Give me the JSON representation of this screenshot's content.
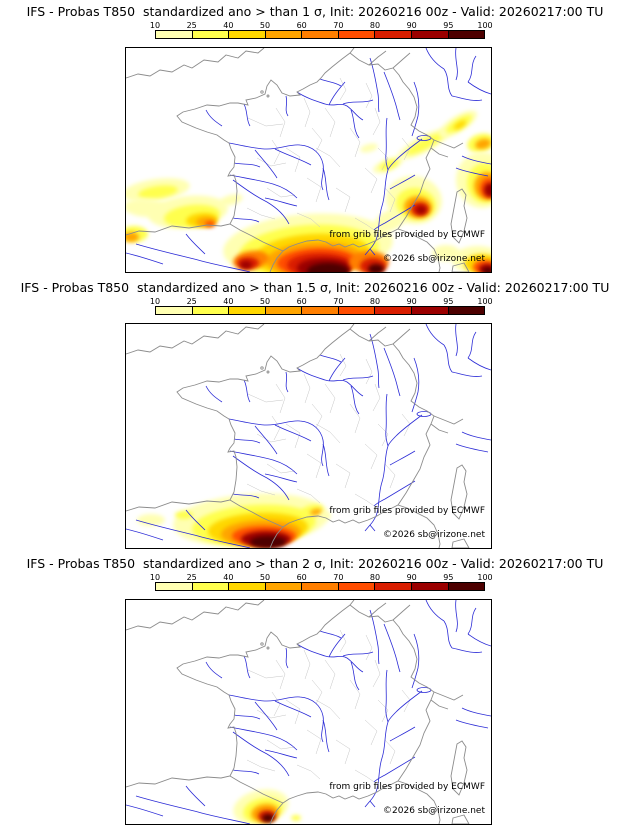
{
  "colorbar": {
    "labels": [
      "10",
      "25",
      "40",
      "50",
      "60",
      "70",
      "80",
      "90",
      "95",
      "100"
    ],
    "colors": [
      "#ffffb2",
      "#ffff4d",
      "#ffd700",
      "#ffa500",
      "#ff7f00",
      "#ff4d00",
      "#d91e00",
      "#9b0000",
      "#4d0000"
    ]
  },
  "attribution": {
    "source": "from grib files provided by ECMWF",
    "copyright": "©2026 sb@irizone.net"
  },
  "map_colors": {
    "coast": "#8c8c8c",
    "departments": "#c6c6c6",
    "rivers": "#2b2bd6",
    "frame": "#000000"
  },
  "panels": [
    {
      "title": "IFS - Probas T850  standardized ano > than 1 σ, Init: 20260216 00z - Valid: 20260217:00 TU",
      "threshold_sigma": "1",
      "blobs": [
        [
          30,
          142,
          34,
          11,
          -8,
          "#ffffb2"
        ],
        [
          32,
          144,
          20,
          6,
          -8,
          "#ffff4d"
        ],
        [
          20,
          160,
          22,
          9,
          4,
          "#ffffb2"
        ],
        [
          105,
          152,
          12,
          5,
          -15,
          "#ffffb2"
        ],
        [
          62,
          164,
          40,
          16,
          -6,
          "#ffffb2"
        ],
        [
          66,
          168,
          28,
          11,
          -6,
          "#ffff4d"
        ],
        [
          76,
          172,
          16,
          7,
          -4,
          "#ffd700"
        ],
        [
          80,
          174,
          10,
          5,
          0,
          "#ffa500"
        ],
        [
          84,
          176,
          5,
          3,
          0,
          "#ff4d00"
        ],
        [
          8,
          186,
          14,
          8,
          0,
          "#ffff4d"
        ],
        [
          5,
          189,
          8,
          5,
          0,
          "#ffa500"
        ],
        [
          298,
          96,
          30,
          8,
          -28,
          "#ffffb2"
        ],
        [
          299,
          96,
          21,
          5,
          -28,
          "#ffff4d"
        ],
        [
          332,
          76,
          22,
          8,
          -32,
          "#ffffb2"
        ],
        [
          333,
          76,
          15,
          5,
          -32,
          "#ffff4d"
        ],
        [
          334,
          77,
          7,
          3,
          -32,
          "#ffd700"
        ],
        [
          355,
          95,
          14,
          9,
          -15,
          "#ffff4d"
        ],
        [
          357,
          96,
          8,
          5,
          -15,
          "#ffa500"
        ],
        [
          262,
          117,
          16,
          6,
          -22,
          "#ffffb2"
        ],
        [
          263,
          117,
          10,
          4,
          -22,
          "#ffff4d"
        ],
        [
          243,
          100,
          9,
          4,
          -15,
          "#ffffb2"
        ],
        [
          265,
          172,
          18,
          10,
          -25,
          "#ffffb2"
        ],
        [
          320,
          205,
          14,
          8,
          0,
          "#ffffb2"
        ],
        [
          356,
          132,
          26,
          28,
          0,
          "#ffffb2"
        ],
        [
          359,
          135,
          18,
          20,
          0,
          "#ffff4d"
        ],
        [
          361,
          138,
          13,
          14,
          0,
          "#ffa500"
        ],
        [
          363,
          140,
          9,
          10,
          0,
          "#ff4d00"
        ],
        [
          364,
          142,
          6,
          7,
          0,
          "#9b0000"
        ],
        [
          288,
          152,
          28,
          24,
          10,
          "#ffffb2"
        ],
        [
          290,
          156,
          20,
          16,
          10,
          "#ffff4d"
        ],
        [
          292,
          159,
          14,
          11,
          5,
          "#ffa500"
        ],
        [
          294,
          161,
          9,
          7,
          0,
          "#d91e00"
        ],
        [
          295,
          162,
          5,
          4,
          0,
          "#9b0000"
        ],
        [
          182,
          198,
          85,
          32,
          -4,
          "#ffffb2"
        ],
        [
          183,
          203,
          70,
          26,
          -4,
          "#ffff4d"
        ],
        [
          186,
          207,
          58,
          21,
          -4,
          "#ffd700"
        ],
        [
          188,
          211,
          48,
          17,
          -3,
          "#ffa500"
        ],
        [
          191,
          214,
          40,
          14,
          -2,
          "#ff4d00"
        ],
        [
          194,
          217,
          33,
          12,
          0,
          "#d91e00"
        ],
        [
          198,
          220,
          27,
          10,
          0,
          "#9b0000"
        ],
        [
          202,
          223,
          21,
          8,
          0,
          "#4d0000"
        ],
        [
          125,
          212,
          18,
          9,
          -8,
          "#ff7f00"
        ],
        [
          122,
          215,
          11,
          6,
          0,
          "#d91e00"
        ],
        [
          120,
          217,
          6,
          4,
          0,
          "#9b0000"
        ],
        [
          243,
          214,
          20,
          11,
          0,
          "#ff7f00"
        ],
        [
          247,
          218,
          13,
          8,
          0,
          "#d91e00"
        ],
        [
          250,
          221,
          8,
          5,
          0,
          "#4d0000"
        ],
        [
          352,
          212,
          26,
          14,
          0,
          "#ffffb2"
        ],
        [
          356,
          216,
          18,
          10,
          0,
          "#ffd700"
        ],
        [
          359,
          219,
          12,
          7,
          0,
          "#ff4d00"
        ],
        [
          361,
          221,
          8,
          5,
          0,
          "#9b0000"
        ],
        [
          362,
          223,
          5,
          3,
          0,
          "#4d0000"
        ]
      ]
    },
    {
      "title": "IFS - Probas T850  standardized ano > than 1.5 σ, Init: 20260216 00z - Valid: 20260217:00 TU",
      "threshold_sigma": "1.5",
      "blobs": [
        [
          25,
          196,
          14,
          6,
          0,
          "#ffffb2"
        ],
        [
          125,
          196,
          78,
          26,
          -4,
          "#ffffb2"
        ],
        [
          128,
          201,
          62,
          20,
          -4,
          "#ffff4d"
        ],
        [
          132,
          205,
          50,
          16,
          -3,
          "#ffd700"
        ],
        [
          135,
          209,
          40,
          13,
          -2,
          "#ffa500"
        ],
        [
          138,
          212,
          32,
          10,
          0,
          "#ff4d00"
        ],
        [
          140,
          215,
          25,
          8,
          0,
          "#9b0000"
        ],
        [
          142,
          218,
          18,
          6,
          0,
          "#4d0000"
        ],
        [
          58,
          191,
          9,
          4,
          0,
          "#ffff4d"
        ],
        [
          186,
          186,
          11,
          5,
          -12,
          "#ffff4d"
        ],
        [
          190,
          188,
          6,
          3,
          -12,
          "#ffa500"
        ],
        [
          200,
          192,
          5,
          3,
          0,
          "#ffffb2"
        ]
      ]
    },
    {
      "title": "IFS - Probas T850  standardized ano > than 2 σ, Init: 20260216 00z - Valid: 20260217:00 TU",
      "threshold_sigma": "2",
      "blobs": [
        [
          135,
          207,
          28,
          17,
          -12,
          "#ffffb2"
        ],
        [
          137,
          210,
          20,
          12,
          -12,
          "#ffff4d"
        ],
        [
          139,
          213,
          14,
          9,
          -8,
          "#ffa500"
        ],
        [
          141,
          216,
          9,
          6,
          0,
          "#d91e00"
        ],
        [
          142,
          218,
          6,
          4,
          0,
          "#4d0000"
        ],
        [
          170,
          218,
          5,
          3,
          0,
          "#ffff4d"
        ]
      ]
    }
  ]
}
